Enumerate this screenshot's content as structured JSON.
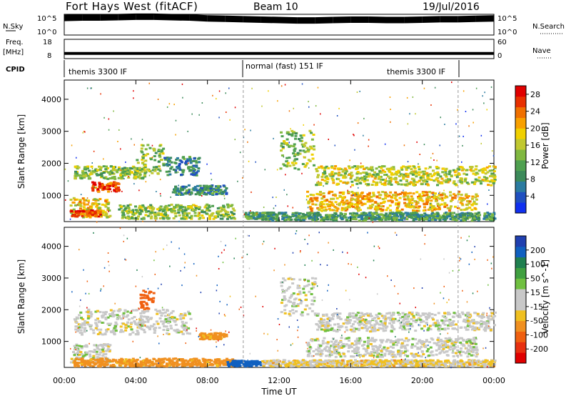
{
  "header": {
    "station": "Fort Hays West (fitACF)",
    "beam": "Beam 10",
    "date": "19/Jul/2016"
  },
  "left_labels": {
    "nsky": "N.Sky",
    "freq": "Freq.",
    "freq_unit": "[MHz]",
    "cpid": "CPID"
  },
  "right_labels": {
    "nsearch": "N.Search",
    "nave": "Nave"
  },
  "noise_axis_left": {
    "top": "10^5",
    "bottom": "10^0"
  },
  "noise_axis_right": {
    "top": "10^5",
    "bottom": "10^0"
  },
  "freq_axis_left": {
    "top": "18",
    "bottom": "8"
  },
  "nave_axis_right": {
    "top": "60",
    "bottom": "0"
  },
  "cpid_segments": [
    {
      "label": "themis 3300 IF",
      "start_hour": 0,
      "end_hour": 10
    },
    {
      "label": "normal (fast) 151 IF",
      "start_hour": 10,
      "end_hour": 22
    },
    {
      "label": "themis 3300 IF",
      "start_hour": 22,
      "end_hour": 24
    }
  ],
  "x_axis": {
    "label": "Time UT",
    "ticks": [
      "00:00",
      "04:00",
      "08:00",
      "12:00",
      "16:00",
      "20:00",
      "00:00"
    ],
    "range_hours": [
      0,
      24
    ]
  },
  "y_axis": {
    "label": "Slant Range [km]",
    "ticks": [
      "1000",
      "2000",
      "3000",
      "4000"
    ],
    "range_km": [
      180,
      4600
    ]
  },
  "power_colorbar": {
    "label": "Power [dB]",
    "ticks": [
      "4",
      "8",
      "12",
      "16",
      "20",
      "24",
      "28"
    ],
    "range": [
      0,
      30
    ],
    "colors": [
      "#1030f0",
      "#2050c0",
      "#2b7ba0",
      "#3c8a5a",
      "#4fa050",
      "#80b840",
      "#c0c830",
      "#f0d000",
      "#f8a000",
      "#f07000",
      "#e83000",
      "#e00000"
    ]
  },
  "velocity_colorbar": {
    "label": "Velocity [m s^-1]",
    "ticks": [
      "200",
      "100",
      "50",
      "15",
      "-15",
      "-50",
      "-100",
      "-200"
    ],
    "colors": [
      "#2040b0",
      "#1060c0",
      "#208050",
      "#40a040",
      "#70c040",
      "#c8c8c8",
      "#c8c8c8",
      "#f0c020",
      "#f09020",
      "#f06010",
      "#e83010",
      "#e00000"
    ]
  },
  "chart_data": [
    {
      "type": "line",
      "title": "N.Sky / N.Search",
      "x": [
        0,
        1,
        2,
        3,
        4,
        5,
        6,
        7,
        8,
        9,
        10,
        11,
        12,
        13,
        14,
        15,
        16,
        17,
        18,
        19,
        20,
        21,
        22,
        23,
        24
      ],
      "series": [
        {
          "name": "N.Sky",
          "values": [
            4.2,
            4.3,
            4.3,
            4.4,
            4.5,
            4.5,
            4.4,
            4.3,
            4.1,
            4.0,
            3.9,
            3.8,
            3.7,
            3.6,
            3.6,
            3.7,
            3.8,
            3.8,
            3.7,
            3.7,
            3.8,
            3.9,
            3.9,
            4.0,
            4.1
          ]
        }
      ],
      "ylim": [
        0,
        5
      ]
    },
    {
      "type": "line",
      "title": "Freq. [MHz] / Nave",
      "x": [
        0,
        10,
        22,
        24
      ],
      "series": [
        {
          "name": "Freq.",
          "values": [
            10.5,
            10.5,
            10.5,
            10.5
          ]
        }
      ],
      "ylim": [
        8,
        18
      ]
    },
    {
      "type": "heatmap",
      "title": "Power [dB]",
      "xlabel": "Time UT",
      "ylabel": "Slant Range [km]",
      "xlim": [
        0,
        24
      ],
      "ylim": [
        180,
        4600
      ],
      "zlim": [
        0,
        30
      ],
      "regions": [
        {
          "t0": 0.3,
          "t1": 2.5,
          "r0": 300,
          "r1": 900,
          "power": 18
        },
        {
          "t0": 0.3,
          "t1": 2.0,
          "r0": 320,
          "r1": 520,
          "power": 26
        },
        {
          "t0": 0.5,
          "t1": 4.5,
          "r0": 1500,
          "r1": 1900,
          "power": 14
        },
        {
          "t0": 1.5,
          "t1": 3.0,
          "r0": 1100,
          "r1": 1400,
          "power": 26
        },
        {
          "t0": 4.0,
          "t1": 5.5,
          "r0": 1600,
          "r1": 2600,
          "power": 14
        },
        {
          "t0": 5.5,
          "t1": 7.5,
          "r0": 1600,
          "r1": 2200,
          "power": 8
        },
        {
          "t0": 6.0,
          "t1": 9.0,
          "r0": 1000,
          "r1": 1300,
          "power": 8
        },
        {
          "t0": 3.0,
          "t1": 9.5,
          "r0": 250,
          "r1": 700,
          "power": 14
        },
        {
          "t0": 10.0,
          "t1": 11.5,
          "r0": 250,
          "r1": 450,
          "power": 10
        },
        {
          "t0": 12.0,
          "t1": 14.0,
          "r0": 1800,
          "r1": 3000,
          "power": 14
        },
        {
          "t0": 14.0,
          "t1": 24.0,
          "r0": 1300,
          "r1": 1900,
          "power": 16
        },
        {
          "t0": 13.5,
          "t1": 23.0,
          "r0": 500,
          "r1": 1100,
          "power": 20
        },
        {
          "t0": 11.0,
          "t1": 24.0,
          "r0": 200,
          "r1": 450,
          "power": 10
        }
      ]
    },
    {
      "type": "heatmap",
      "title": "Velocity [m s^-1]",
      "xlabel": "Time UT",
      "ylabel": "Slant Range [km]",
      "xlim": [
        0,
        24
      ],
      "ylim": [
        180,
        4600
      ],
      "zlim": [
        -200,
        200
      ],
      "regions": [
        {
          "t0": 0.3,
          "t1": 2.5,
          "r0": 300,
          "r1": 900,
          "velocity": 0
        },
        {
          "t0": 0.5,
          "t1": 7.0,
          "r0": 1200,
          "r1": 2000,
          "velocity": 0
        },
        {
          "t0": 4.2,
          "t1": 5.0,
          "r0": 2000,
          "r1": 2600,
          "velocity": -100
        },
        {
          "t0": 7.5,
          "t1": 9.0,
          "r0": 1050,
          "r1": 1250,
          "velocity": -50
        },
        {
          "t0": 0.5,
          "t1": 9.5,
          "r0": 200,
          "r1": 450,
          "velocity": -50
        },
        {
          "t0": 9.0,
          "t1": 11.0,
          "r0": 200,
          "r1": 380,
          "velocity": 100
        },
        {
          "t0": 12.0,
          "t1": 14.0,
          "r0": 1800,
          "r1": 3000,
          "velocity": 0
        },
        {
          "t0": 14.0,
          "t1": 24.0,
          "r0": 1300,
          "r1": 1900,
          "velocity": 0
        },
        {
          "t0": 13.5,
          "t1": 23.0,
          "r0": 500,
          "r1": 1100,
          "velocity": 0
        },
        {
          "t0": 11.0,
          "t1": 24.0,
          "r0": 200,
          "r1": 400,
          "velocity": -15
        }
      ]
    }
  ]
}
